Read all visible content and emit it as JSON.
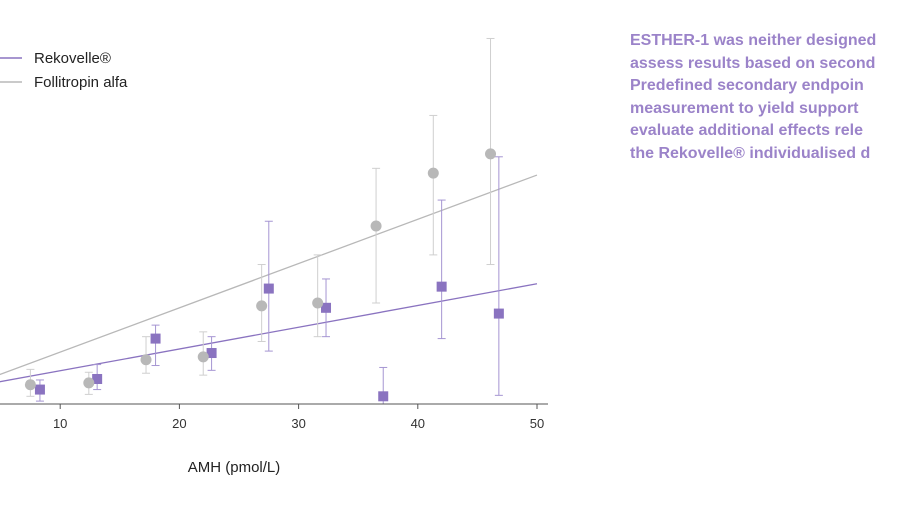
{
  "chart_data": {
    "type": "scatter",
    "xlabel": "AMH (pmol/L)",
    "xlim": [
      0,
      50
    ],
    "x_ticks": [
      10,
      20,
      30,
      40,
      50
    ],
    "ylim": [
      0,
      42
    ],
    "grid": false,
    "legend_position": "top-left",
    "series": [
      {
        "name": "Rekovelle®",
        "color": "#8a73c0",
        "marker": "square",
        "points": [
          {
            "x": 8.3,
            "y": 1.5,
            "lo": 0.3,
            "hi": 2.5
          },
          {
            "x": 13.1,
            "y": 2.6,
            "lo": 1.5,
            "hi": 4.1
          },
          {
            "x": 18.0,
            "y": 6.8,
            "lo": 4.0,
            "hi": 8.2
          },
          {
            "x": 22.7,
            "y": 5.3,
            "lo": 3.5,
            "hi": 7.0
          },
          {
            "x": 27.5,
            "y": 12.0,
            "lo": 5.5,
            "hi": 19.0
          },
          {
            "x": 32.3,
            "y": 10.0,
            "lo": 7.0,
            "hi": 13.0
          },
          {
            "x": 37.1,
            "y": 0.8,
            "lo": 0.0,
            "hi": 3.8
          },
          {
            "x": 42.0,
            "y": 12.2,
            "lo": 6.8,
            "hi": 21.2
          },
          {
            "x": 46.8,
            "y": 9.4,
            "lo": 0.9,
            "hi": 25.7
          }
        ],
        "trend": {
          "x": [
            0,
            50
          ],
          "y": [
            1.2,
            12.5
          ]
        }
      },
      {
        "name": "Follitropin alfa",
        "color": "#b8b8b8",
        "marker": "circle",
        "points": [
          {
            "x": 7.5,
            "y": 2.0,
            "lo": 0.8,
            "hi": 3.6
          },
          {
            "x": 12.4,
            "y": 2.2,
            "lo": 1.0,
            "hi": 3.3
          },
          {
            "x": 17.2,
            "y": 4.6,
            "lo": 3.2,
            "hi": 7.0
          },
          {
            "x": 22.0,
            "y": 4.9,
            "lo": 3.0,
            "hi": 7.5
          },
          {
            "x": 26.9,
            "y": 10.2,
            "lo": 6.5,
            "hi": 14.5
          },
          {
            "x": 31.6,
            "y": 10.5,
            "lo": 7.0,
            "hi": 15.5
          },
          {
            "x": 36.5,
            "y": 18.5,
            "lo": 10.5,
            "hi": 24.5
          },
          {
            "x": 41.3,
            "y": 24.0,
            "lo": 15.5,
            "hi": 30.0
          },
          {
            "x": 46.1,
            "y": 26.0,
            "lo": 14.5,
            "hi": 38.0
          }
        ],
        "trend": {
          "x": [
            0,
            50
          ],
          "y": [
            0.8,
            23.8
          ]
        }
      }
    ]
  },
  "side_text": [
    "ESTHER-1 was neither designed",
    "assess results based on second",
    "Predefined secondary endpoin",
    "measurement to yield support",
    "evaluate additional effects rele",
    "the Rekovelle® individualised d"
  ]
}
